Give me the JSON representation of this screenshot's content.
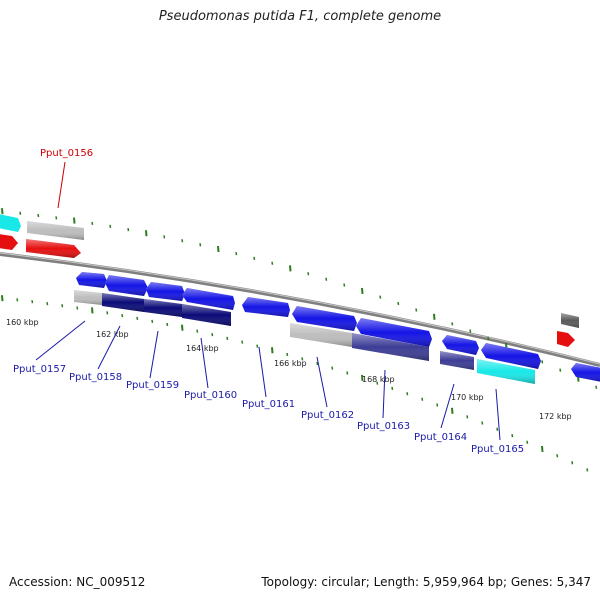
{
  "title": "Pseudomonas putida F1, complete genome",
  "footer": {
    "accession": "Accession: NC_009512",
    "summary": "Topology: circular; Length: 5,959,964 bp; Genes: 5,347"
  },
  "colors": {
    "background": "#ffffff",
    "backbone": "#7f7f7f",
    "tick": "#2e7d1e",
    "gene_blue": "#1414e6",
    "gene_navy": "#0a0a78",
    "gene_slate": "#3c3c96",
    "gene_cyan": "#18e8e8",
    "gene_red": "#e60f0f",
    "gene_gray": "#bdbdbd",
    "gene_darkgray": "#5a5a5a",
    "label_red": "#cc0000",
    "label_blue": "#1a1aa8"
  },
  "scale_labels": [
    "160 kbp",
    "162 kbp",
    "164 kbp",
    "166 kbp",
    "168 kbp",
    "170 kbp",
    "172 kbp"
  ],
  "gene_labels": {
    "Pput_0156": "Pput_0156",
    "Pput_0157": "Pput_0157",
    "Pput_0158": "Pput_0158",
    "Pput_0159": "Pput_0159",
    "Pput_0160": "Pput_0160",
    "Pput_0161": "Pput_0161",
    "Pput_0162": "Pput_0162",
    "Pput_0163": "Pput_0163",
    "Pput_0164": "Pput_0164",
    "Pput_0165": "Pput_0165"
  }
}
